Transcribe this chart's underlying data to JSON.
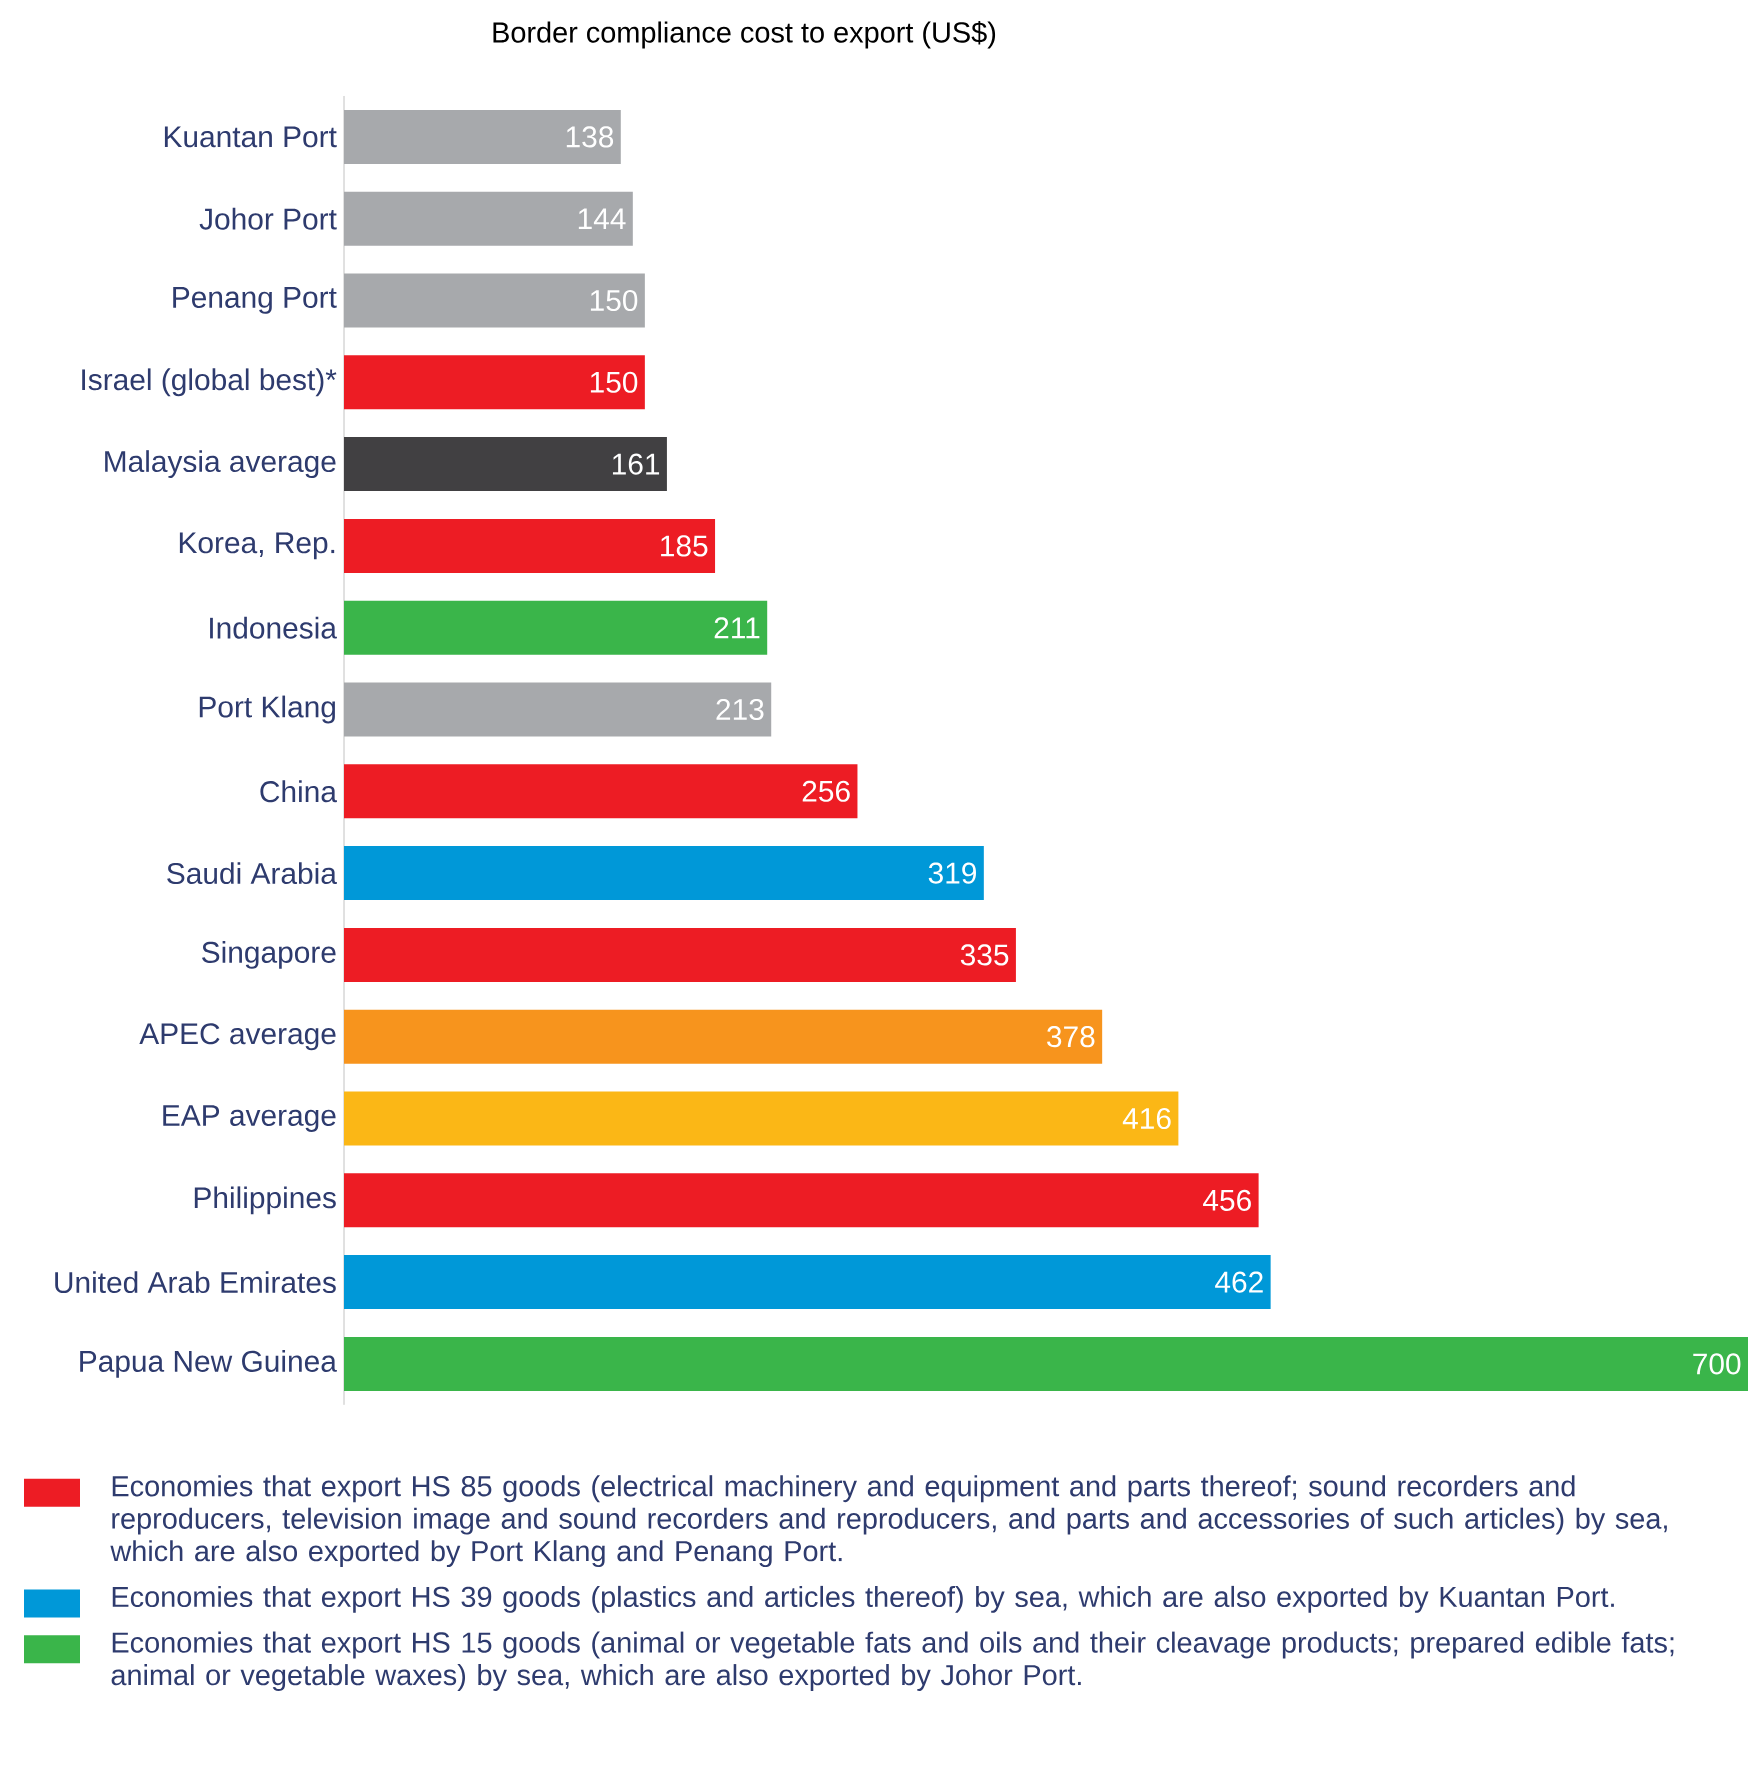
{
  "chart_data": {
    "type": "bar",
    "orientation": "horizontal",
    "title": "Border compliance cost to export (US$)",
    "categories": [
      "Kuantan Port",
      "Johor Port",
      "Penang Port",
      "Israel (global best)*",
      "Malaysia average",
      "Korea, Rep.",
      "Indonesia",
      "Port Klang",
      "China",
      "Saudi Arabia",
      "Singapore",
      "APEC average",
      "EAP average",
      "Philippines",
      "United Arab Emirates",
      "Papua New Guinea"
    ],
    "series": [
      {
        "name": "Economies that export HS 85 goods (electrical machinery and equipment and parts thereof; sound recorders and reproducers, television image and sound recorders and reproducers, and parts and accessories of such articles) by sea, which are also exported by Port Klang and Penang Port.",
        "color": "#ed1c24",
        "values": [
          null,
          null,
          null,
          150,
          null,
          185,
          null,
          null,
          256,
          null,
          335,
          null,
          null,
          456,
          null,
          null
        ]
      },
      {
        "name": "Economies that export HS 39 goods (plastics and articles thereof) by sea, which are also exported by Kuantan Port.",
        "color": "#0098d8",
        "values": [
          null,
          null,
          null,
          null,
          null,
          null,
          null,
          null,
          null,
          319,
          null,
          null,
          null,
          null,
          462,
          null
        ]
      },
      {
        "name": "Economies that export HS 15 goods (animal or vegetable fats and oils and their cleavage products; prepared edible fats; animal or vegetable waxes) by sea, which are also exported by Johor Port.",
        "color": "#3ab54a",
        "values": [
          null,
          null,
          null,
          null,
          null,
          null,
          211,
          null,
          null,
          null,
          null,
          null,
          null,
          null,
          null,
          700
        ]
      },
      {
        "color": "#a7a9ac",
        "values": [
          138,
          144,
          150,
          null,
          null,
          null,
          null,
          213,
          null,
          null,
          null,
          null,
          null,
          null,
          null,
          null
        ]
      },
      {
        "color": "#414042",
        "values": [
          null,
          null,
          null,
          null,
          161,
          null,
          null,
          null,
          null,
          null,
          null,
          null,
          null,
          null,
          null,
          null
        ]
      },
      {
        "color": "#f7941d",
        "values": [
          null,
          null,
          null,
          null,
          null,
          null,
          null,
          null,
          null,
          null,
          null,
          378,
          null,
          null,
          null,
          null
        ]
      },
      {
        "color": "#fbb716",
        "values": [
          null,
          null,
          null,
          null,
          null,
          null,
          null,
          null,
          null,
          null,
          null,
          null,
          416,
          null,
          null,
          null
        ]
      }
    ],
    "xlim": [
      0,
      700
    ],
    "tick_labels": "y",
    "data_labels": true,
    "legend": "bottom"
  }
}
